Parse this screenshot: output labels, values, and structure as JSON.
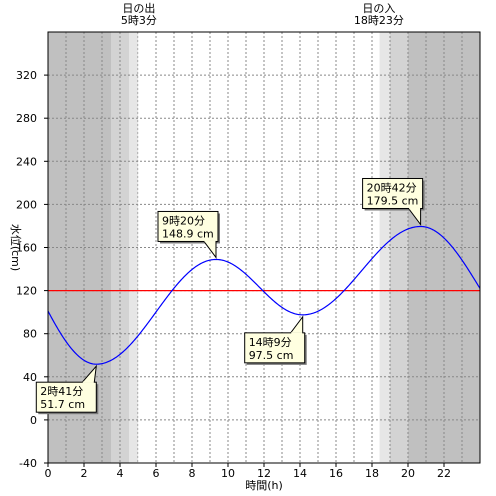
{
  "chart_data": {
    "type": "line",
    "xlabel": "時間(h)",
    "ylabel": "水位(cm)",
    "xlim": [
      0,
      24
    ],
    "ylim": [
      -40,
      360
    ],
    "x_ticks": [
      0,
      2,
      4,
      6,
      8,
      10,
      12,
      14,
      16,
      18,
      20,
      22
    ],
    "y_ticks": [
      -40,
      0,
      40,
      80,
      120,
      160,
      200,
      240,
      280,
      320
    ],
    "grid": true,
    "colors": {
      "tide_line": "#0000ff",
      "reference_line": "#ff0000",
      "night": "#c0c0c0",
      "twilight_outer": "#d3d3d3",
      "twilight_inner": "#e6e6e6",
      "callout_bg": "#ffffe0"
    },
    "reference_level": 120,
    "night_bands": [
      [
        0,
        3.5
      ],
      [
        20,
        24
      ]
    ],
    "twilight_bands": [
      {
        "from": 3.5,
        "to": 4.5,
        "shade": "outer"
      },
      {
        "from": 4.5,
        "to": 5.05,
        "shade": "inner"
      },
      {
        "from": 18.38,
        "to": 19.0,
        "shade": "inner"
      },
      {
        "from": 19.0,
        "to": 20.0,
        "shade": "outer"
      }
    ],
    "sun_events": [
      {
        "name": "sunrise",
        "label": "日の出",
        "time_label": "5時3分",
        "x": 5.05
      },
      {
        "name": "sunset",
        "label": "日の入",
        "time_label": "18時23分",
        "x": 18.38
      }
    ],
    "extrema": [
      {
        "t": 2.683,
        "level": 51.7,
        "time_label": "2時41分",
        "level_label": "51.7 cm",
        "kind": "low"
      },
      {
        "t": 9.333,
        "level": 148.9,
        "time_label": "9時20分",
        "level_label": "148.9 cm",
        "kind": "high"
      },
      {
        "t": 14.15,
        "level": 97.5,
        "time_label": "14時9分",
        "level_label": "97.5 cm",
        "kind": "low"
      },
      {
        "t": 20.7,
        "level": 179.5,
        "time_label": "20時42分",
        "level_label": "179.5 cm",
        "kind": "high"
      }
    ],
    "start_level": 101,
    "end_level": 122
  }
}
